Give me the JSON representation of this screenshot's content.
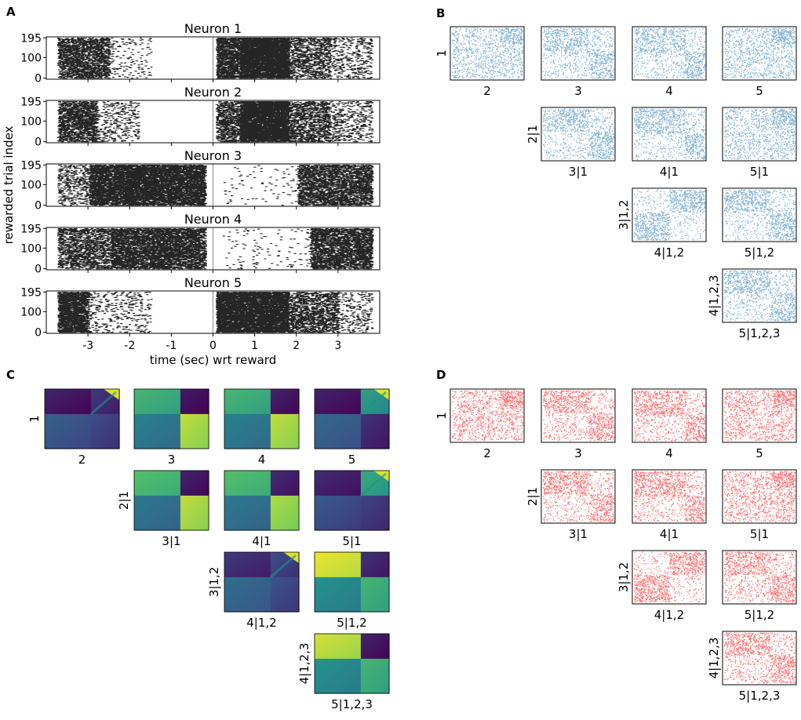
{
  "panel_labels": {
    "A": "A",
    "B": "B",
    "C": "C",
    "D": "D"
  },
  "colors": {
    "raster": "#000000",
    "copula_blue": "#1f77b4",
    "copula_red": "#ff0000",
    "viridis_low": "#440154",
    "viridis_mid": "#21918c",
    "viridis_high": "#fde725"
  },
  "chart_data": [
    {
      "id": "A",
      "type": "scatter",
      "subtype": "raster",
      "titles": [
        "Neuron 1",
        "Neuron 2",
        "Neuron 3",
        "Neuron 4",
        "Neuron 5"
      ],
      "ylabel": "rewarded trial index",
      "xlabel": "time (sec) wrt reward",
      "x_ticks": [
        -3,
        -2,
        -1,
        0,
        1,
        2,
        3
      ],
      "x_tick_labels": [
        "-3",
        "-2",
        "-1",
        "0",
        "1",
        "2",
        "3"
      ],
      "y_ticks": [
        0,
        100,
        195
      ],
      "y_tick_labels": [
        "0",
        "100",
        "195"
      ],
      "xlim": [
        -4,
        4
      ],
      "ylim": [
        -5,
        200
      ],
      "data_range": [
        -3.8,
        3.8
      ],
      "series": [
        {
          "name": "Neuron 1",
          "pre_bands": [
            [
              -3.75,
              -2.5,
              0.45
            ],
            [
              -2.5,
              -1.5,
              0.05
            ]
          ],
          "post_bands": [
            [
              0.05,
              0.6,
              0.6
            ],
            [
              0.6,
              1.8,
              0.8
            ],
            [
              1.8,
              2.8,
              0.3
            ],
            [
              2.8,
              3.8,
              0.12
            ]
          ]
        },
        {
          "name": "Neuron 2",
          "pre_bands": [
            [
              -3.75,
              -2.8,
              0.5
            ],
            [
              -2.8,
              -1.8,
              0.12
            ]
          ],
          "post_bands": [
            [
              0.05,
              0.6,
              0.4
            ],
            [
              0.6,
              1.8,
              0.8
            ],
            [
              1.8,
              2.8,
              0.35
            ],
            [
              2.8,
              3.8,
              0.15
            ]
          ]
        },
        {
          "name": "Neuron 3",
          "pre_bands": [
            [
              -3.75,
              -3.0,
              0.2
            ],
            [
              -3.0,
              -0.2,
              0.65
            ]
          ],
          "post_bands": [
            [
              0.2,
              2.0,
              0.02
            ],
            [
              2.0,
              3.8,
              0.45
            ]
          ]
        },
        {
          "name": "Neuron 4",
          "pre_bands": [
            [
              -3.75,
              -2.5,
              0.35
            ],
            [
              -2.5,
              -0.2,
              0.55
            ]
          ],
          "post_bands": [
            [
              0.2,
              2.3,
              0.02
            ],
            [
              2.3,
              3.8,
              0.5
            ]
          ]
        },
        {
          "name": "Neuron 5",
          "pre_bands": [
            [
              -3.75,
              -3.0,
              0.6
            ],
            [
              -3.0,
              -1.5,
              0.08
            ]
          ],
          "post_bands": [
            [
              0.05,
              1.8,
              0.75
            ],
            [
              1.8,
              3.0,
              0.35
            ],
            [
              3.0,
              3.8,
              0.1
            ]
          ]
        }
      ]
    },
    {
      "id": "B",
      "type": "scatter",
      "subtype": "pairwise-copula-grid",
      "color": "#1f77b4",
      "rows": [
        {
          "row_label": "1",
          "cells": [
            {
              "col": 0,
              "label": "2",
              "pattern": "tr"
            },
            {
              "col": 1,
              "label": "3",
              "pattern": "tlbr"
            },
            {
              "col": 2,
              "label": "4",
              "pattern": "tlbr2"
            },
            {
              "col": 3,
              "label": "5",
              "pattern": "tr"
            }
          ]
        },
        {
          "row_label": "2|1",
          "cells": [
            {
              "col": 1,
              "label": "3|1",
              "pattern": "tlbr"
            },
            {
              "col": 2,
              "label": "4|1",
              "pattern": "tlbr2"
            },
            {
              "col": 3,
              "label": "5|1",
              "pattern": "tr"
            }
          ]
        },
        {
          "row_label": "3|1,2",
          "cells": [
            {
              "col": 2,
              "label": "4|1,2",
              "pattern": "trbl"
            },
            {
              "col": 3,
              "label": "5|1,2",
              "pattern": "tlbr"
            }
          ]
        },
        {
          "row_label": "4|1,2,3",
          "cells": [
            {
              "col": 3,
              "label": "5|1,2,3",
              "pattern": "tlbr"
            }
          ]
        }
      ]
    },
    {
      "id": "C",
      "type": "heatmap",
      "subtype": "pairwise-density-grid",
      "colormap": "viridis",
      "rows": [
        {
          "row_label": "1",
          "cells": [
            {
              "col": 0,
              "label": "2",
              "regions": [
                0.05,
                0.12,
                0.25,
                0.18
              ],
              "accent": "tr"
            },
            {
              "col": 1,
              "label": "3",
              "regions": [
                0.6,
                0.02,
                0.38,
                0.85
              ],
              "accent": "none"
            },
            {
              "col": 2,
              "label": "4",
              "regions": [
                0.6,
                0.05,
                0.38,
                0.85
              ],
              "accent": "none"
            },
            {
              "col": 3,
              "label": "5",
              "regions": [
                0.05,
                0.5,
                0.28,
                0.1
              ],
              "accent": "tr"
            }
          ]
        },
        {
          "row_label": "2|1",
          "cells": [
            {
              "col": 1,
              "label": "3|1",
              "regions": [
                0.65,
                0.05,
                0.35,
                0.85
              ],
              "accent": "none"
            },
            {
              "col": 2,
              "label": "4|1",
              "regions": [
                0.65,
                0.08,
                0.35,
                0.82
              ],
              "accent": "none"
            },
            {
              "col": 3,
              "label": "5|1",
              "regions": [
                0.08,
                0.55,
                0.22,
                0.15
              ],
              "accent": "tr"
            }
          ]
        },
        {
          "row_label": "3|1,2",
          "cells": [
            {
              "col": 2,
              "label": "4|1,2",
              "regions": [
                0.12,
                0.18,
                0.3,
                0.2
              ],
              "accent": "tr"
            },
            {
              "col": 3,
              "label": "5|1,2",
              "regions": [
                0.92,
                0.1,
                0.45,
                0.6
              ],
              "accent": "none"
            }
          ]
        },
        {
          "row_label": "4|1,2,3",
          "cells": [
            {
              "col": 3,
              "label": "5|1,2,3",
              "regions": [
                0.88,
                0.05,
                0.45,
                0.6
              ],
              "accent": "none"
            }
          ]
        }
      ]
    },
    {
      "id": "D",
      "type": "scatter",
      "subtype": "pairwise-copula-grid",
      "color": "#ff0000",
      "rows": [
        {
          "row_label": "1",
          "cells": [
            {
              "col": 0,
              "label": "2",
              "pattern": "tr"
            },
            {
              "col": 1,
              "label": "3",
              "pattern": "tlbr"
            },
            {
              "col": 2,
              "label": "4",
              "pattern": "tlbr2"
            },
            {
              "col": 3,
              "label": "5",
              "pattern": "tr"
            }
          ]
        },
        {
          "row_label": "2|1",
          "cells": [
            {
              "col": 1,
              "label": "3|1",
              "pattern": "tlbr"
            },
            {
              "col": 2,
              "label": "4|1",
              "pattern": "tlbr2"
            },
            {
              "col": 3,
              "label": "5|1",
              "pattern": "tr"
            }
          ]
        },
        {
          "row_label": "3|1,2",
          "cells": [
            {
              "col": 2,
              "label": "4|1,2",
              "pattern": "trbl"
            },
            {
              "col": 3,
              "label": "5|1,2",
              "pattern": "tlbr"
            }
          ]
        },
        {
          "row_label": "4|1,2,3",
          "cells": [
            {
              "col": 3,
              "label": "5|1,2,3",
              "pattern": "tlbr"
            }
          ]
        }
      ]
    }
  ]
}
